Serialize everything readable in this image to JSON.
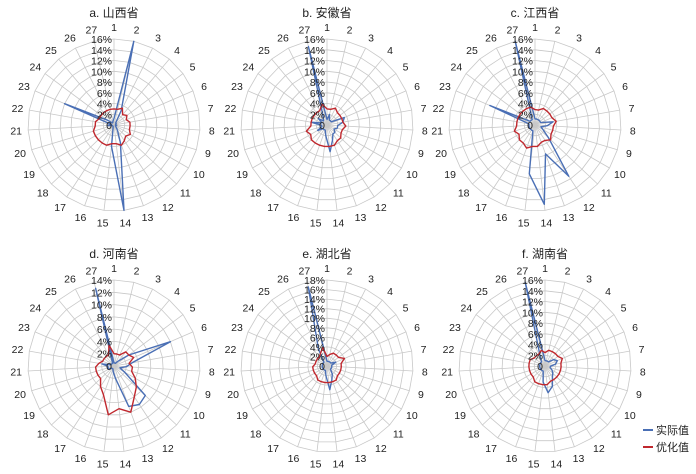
{
  "chart_data": [
    {
      "type": "radar",
      "title": "a. 山西省",
      "categories": [
        "1",
        "2",
        "3",
        "4",
        "5",
        "6",
        "7",
        "8",
        "9",
        "10",
        "11",
        "12",
        "13",
        "14",
        "15",
        "16",
        "17",
        "18",
        "19",
        "20",
        "21",
        "22",
        "23",
        "24",
        "25",
        "26",
        "27"
      ],
      "radial_ticks": [
        "0",
        "2%",
        "4%",
        "6%",
        "8%",
        "10%",
        "12%",
        "14%",
        "16%"
      ],
      "rmax": 16,
      "series": [
        {
          "name": "实际值",
          "color": "#4a6fb5",
          "values": [
            1.2,
            16,
            3,
            0.5,
            0.5,
            0.3,
            0.3,
            0.5,
            0.3,
            0.3,
            0.5,
            1.2,
            3.5,
            16,
            4,
            0.5,
            0.3,
            0.3,
            0.3,
            0.3,
            1.2,
            0.5,
            10,
            1.5,
            0.5,
            0.5,
            0.8
          ]
        },
        {
          "name": "优化值",
          "color": "#c0282e",
          "values": [
            3,
            3,
            3.5,
            2.5,
            3,
            2.5,
            3,
            3,
            3,
            3.5,
            3,
            3.5,
            4,
            3.5,
            3.5,
            4,
            4,
            4,
            4,
            4,
            3.5,
            3.5,
            3,
            3,
            3,
            3,
            3
          ]
        }
      ]
    },
    {
      "type": "radar",
      "title": "b. 安徽省",
      "categories": [
        "1",
        "2",
        "3",
        "4",
        "5",
        "6",
        "7",
        "8",
        "9",
        "10",
        "11",
        "12",
        "13",
        "14",
        "15",
        "16",
        "17",
        "18",
        "19",
        "20",
        "21",
        "22",
        "23",
        "24",
        "25",
        "26",
        "27"
      ],
      "radial_ticks": [
        "0",
        "2%",
        "4%",
        "6%",
        "8%",
        "10%",
        "12%",
        "14%",
        "16%"
      ],
      "rmax": 16,
      "series": [
        {
          "name": "实际值",
          "color": "#4a6fb5",
          "values": [
            1,
            2,
            1,
            1,
            1,
            3.5,
            3,
            2,
            2,
            1.5,
            2,
            2,
            3,
            5,
            2,
            1,
            1,
            1,
            2,
            1,
            1,
            3,
            1,
            2,
            1,
            1.5,
            15
          ]
        },
        {
          "name": "优化值",
          "color": "#c0282e",
          "values": [
            3,
            3,
            3.5,
            3,
            3,
            3,
            3,
            3.5,
            3,
            3,
            3.5,
            3.5,
            4,
            4,
            4,
            4,
            4,
            4,
            3.5,
            4,
            3,
            3,
            3,
            3,
            3,
            3,
            4
          ]
        }
      ]
    },
    {
      "type": "radar",
      "title": "c. 江西省",
      "categories": [
        "1",
        "2",
        "3",
        "4",
        "5",
        "6",
        "7",
        "8",
        "9",
        "10",
        "11",
        "12",
        "13",
        "14",
        "15",
        "16",
        "17",
        "18",
        "19",
        "20",
        "21",
        "22",
        "23",
        "24",
        "25",
        "26",
        "27"
      ],
      "radial_ticks": [
        "0",
        "2%",
        "4%",
        "6%",
        "8%",
        "10%",
        "12%",
        "14%",
        "16%"
      ],
      "rmax": 14,
      "series": [
        {
          "name": "实际值",
          "color": "#4a6fb5",
          "values": [
            1,
            1,
            1,
            1,
            1,
            1,
            3,
            2,
            1,
            1.5,
            3,
            10,
            5,
            13,
            8,
            1,
            1,
            1,
            1,
            1,
            1,
            1,
            8,
            1,
            1,
            1,
            14
          ]
        },
        {
          "name": "优化值",
          "color": "#c0282e",
          "values": [
            2.5,
            2.5,
            3,
            3,
            3,
            3,
            3.5,
            3,
            3,
            3,
            3.5,
            3,
            3,
            3.5,
            3.5,
            4,
            3.5,
            3.5,
            3,
            3.5,
            3,
            3,
            3,
            3,
            3,
            3,
            3
          ]
        }
      ]
    },
    {
      "type": "radar",
      "title": "d. 河南省",
      "categories": [
        "1",
        "2",
        "3",
        "4",
        "5",
        "6",
        "7",
        "8",
        "9",
        "10",
        "11",
        "12",
        "13",
        "14",
        "15",
        "16",
        "17",
        "18",
        "19",
        "20",
        "21",
        "22",
        "23",
        "24",
        "25",
        "26",
        "27"
      ],
      "radial_ticks": [
        "0",
        "2%",
        "4%",
        "6%",
        "8%",
        "10%",
        "12%",
        "14%"
      ],
      "rmax": 14,
      "series": [
        {
          "name": "实际值",
          "color": "#4a6fb5",
          "values": [
            0.5,
            0.5,
            0.5,
            1,
            3,
            10,
            3,
            2,
            1,
            2,
            7,
            7.5,
            7,
            2,
            1,
            0.5,
            0.5,
            0.5,
            1,
            1,
            1,
            2,
            0.5,
            0.5,
            0.5,
            0.5,
            13
          ]
        },
        {
          "name": "优化值",
          "color": "#c0282e",
          "values": [
            2,
            2,
            2,
            3,
            3,
            3.5,
            2.5,
            3,
            3,
            4,
            5,
            6,
            8,
            7,
            8,
            5,
            4,
            3,
            3,
            3,
            3,
            2.5,
            2,
            2,
            2,
            2,
            3.5
          ]
        }
      ]
    },
    {
      "type": "radar",
      "title": "e. 湖北省",
      "categories": [
        "1",
        "2",
        "3",
        "4",
        "5",
        "6",
        "7",
        "8",
        "9",
        "10",
        "11",
        "12",
        "13",
        "14",
        "15",
        "16",
        "17",
        "18",
        "19",
        "20",
        "21",
        "22",
        "23",
        "24",
        "25",
        "26",
        "27"
      ],
      "radial_ticks": [
        "0",
        "2%",
        "4%",
        "6%",
        "8%",
        "10%",
        "12%",
        "14%",
        "16%",
        "18%"
      ],
      "rmax": 18,
      "series": [
        {
          "name": "实际值",
          "color": "#4a6fb5",
          "values": [
            1,
            1,
            1,
            1,
            1,
            2,
            1,
            1,
            1,
            1,
            1,
            2,
            3,
            5,
            2,
            1,
            1,
            1,
            1,
            1,
            1,
            1,
            1,
            1,
            1,
            4,
            17
          ]
        },
        {
          "name": "优化值",
          "color": "#c0282e",
          "values": [
            2,
            2.5,
            3,
            3,
            3,
            4,
            3,
            3,
            3,
            3,
            3,
            3.5,
            3.5,
            3.5,
            3.5,
            3.5,
            3.5,
            3,
            3,
            3,
            3,
            2.5,
            2.5,
            2.5,
            2.5,
            3,
            4
          ]
        }
      ]
    },
    {
      "type": "radar",
      "title": "f. 湖南省",
      "categories": [
        "1",
        "2",
        "3",
        "4",
        "5",
        "6",
        "7",
        "8",
        "9",
        "10",
        "11",
        "12",
        "13",
        "14",
        "15",
        "16",
        "17",
        "18",
        "19",
        "20",
        "21",
        "22",
        "23",
        "24",
        "25",
        "26",
        "27"
      ],
      "radial_ticks": [
        "0",
        "2%",
        "4%",
        "6%",
        "8%",
        "10%",
        "12%",
        "14%",
        "16%"
      ],
      "rmax": 16,
      "series": [
        {
          "name": "实际值",
          "color": "#4a6fb5",
          "values": [
            1,
            1,
            1,
            1,
            2,
            2.5,
            2,
            1,
            1,
            1.5,
            2,
            2.5,
            4,
            5,
            3,
            1,
            1,
            1,
            1,
            1,
            1,
            1,
            1,
            1,
            1,
            2,
            16
          ]
        },
        {
          "name": "优化值",
          "color": "#c0282e",
          "values": [
            2.5,
            3,
            3,
            3,
            3,
            3.5,
            3,
            3,
            3,
            3,
            3,
            3,
            3,
            3.5,
            3.5,
            3.5,
            3.5,
            3,
            3,
            3,
            3,
            3,
            3,
            2.5,
            2.5,
            2.5,
            3
          ]
        }
      ]
    }
  ],
  "legend": [
    {
      "label": "实际值",
      "color": "#4a6fb5"
    },
    {
      "label": "优化值",
      "color": "#c0282e"
    }
  ],
  "grid": true
}
